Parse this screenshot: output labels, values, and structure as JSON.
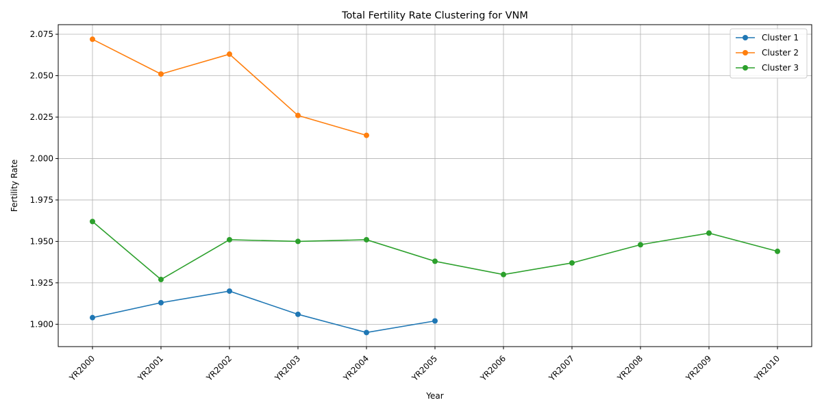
{
  "chart_data": {
    "type": "line",
    "title": "Total Fertility Rate Clustering for VNM",
    "xlabel": "Year",
    "ylabel": "Fertility Rate",
    "categories": [
      "YR2000",
      "YR2001",
      "YR2002",
      "YR2003",
      "YR2004",
      "YR2005",
      "YR2006",
      "YR2007",
      "YR2008",
      "YR2009",
      "YR2010"
    ],
    "ylim": [
      1.8865,
      2.0808
    ],
    "yticks": [
      "1.900",
      "1.925",
      "1.950",
      "1.975",
      "2.000",
      "2.025",
      "2.050",
      "2.075"
    ],
    "grid": true,
    "legend_position": "top-right",
    "series": [
      {
        "name": "Cluster 1",
        "color": "#1f77b4",
        "values": [
          1.904,
          1.913,
          1.92,
          1.906,
          1.895,
          1.902,
          null,
          null,
          null,
          null,
          null
        ]
      },
      {
        "name": "Cluster 2",
        "color": "#ff7f0e",
        "values": [
          2.072,
          2.051,
          2.063,
          2.026,
          2.014,
          null,
          null,
          null,
          null,
          null,
          null
        ]
      },
      {
        "name": "Cluster 3",
        "color": "#2ca02c",
        "values": [
          1.962,
          1.927,
          1.951,
          1.95,
          1.951,
          1.938,
          1.93,
          1.937,
          1.948,
          1.955,
          1.944
        ]
      }
    ]
  }
}
